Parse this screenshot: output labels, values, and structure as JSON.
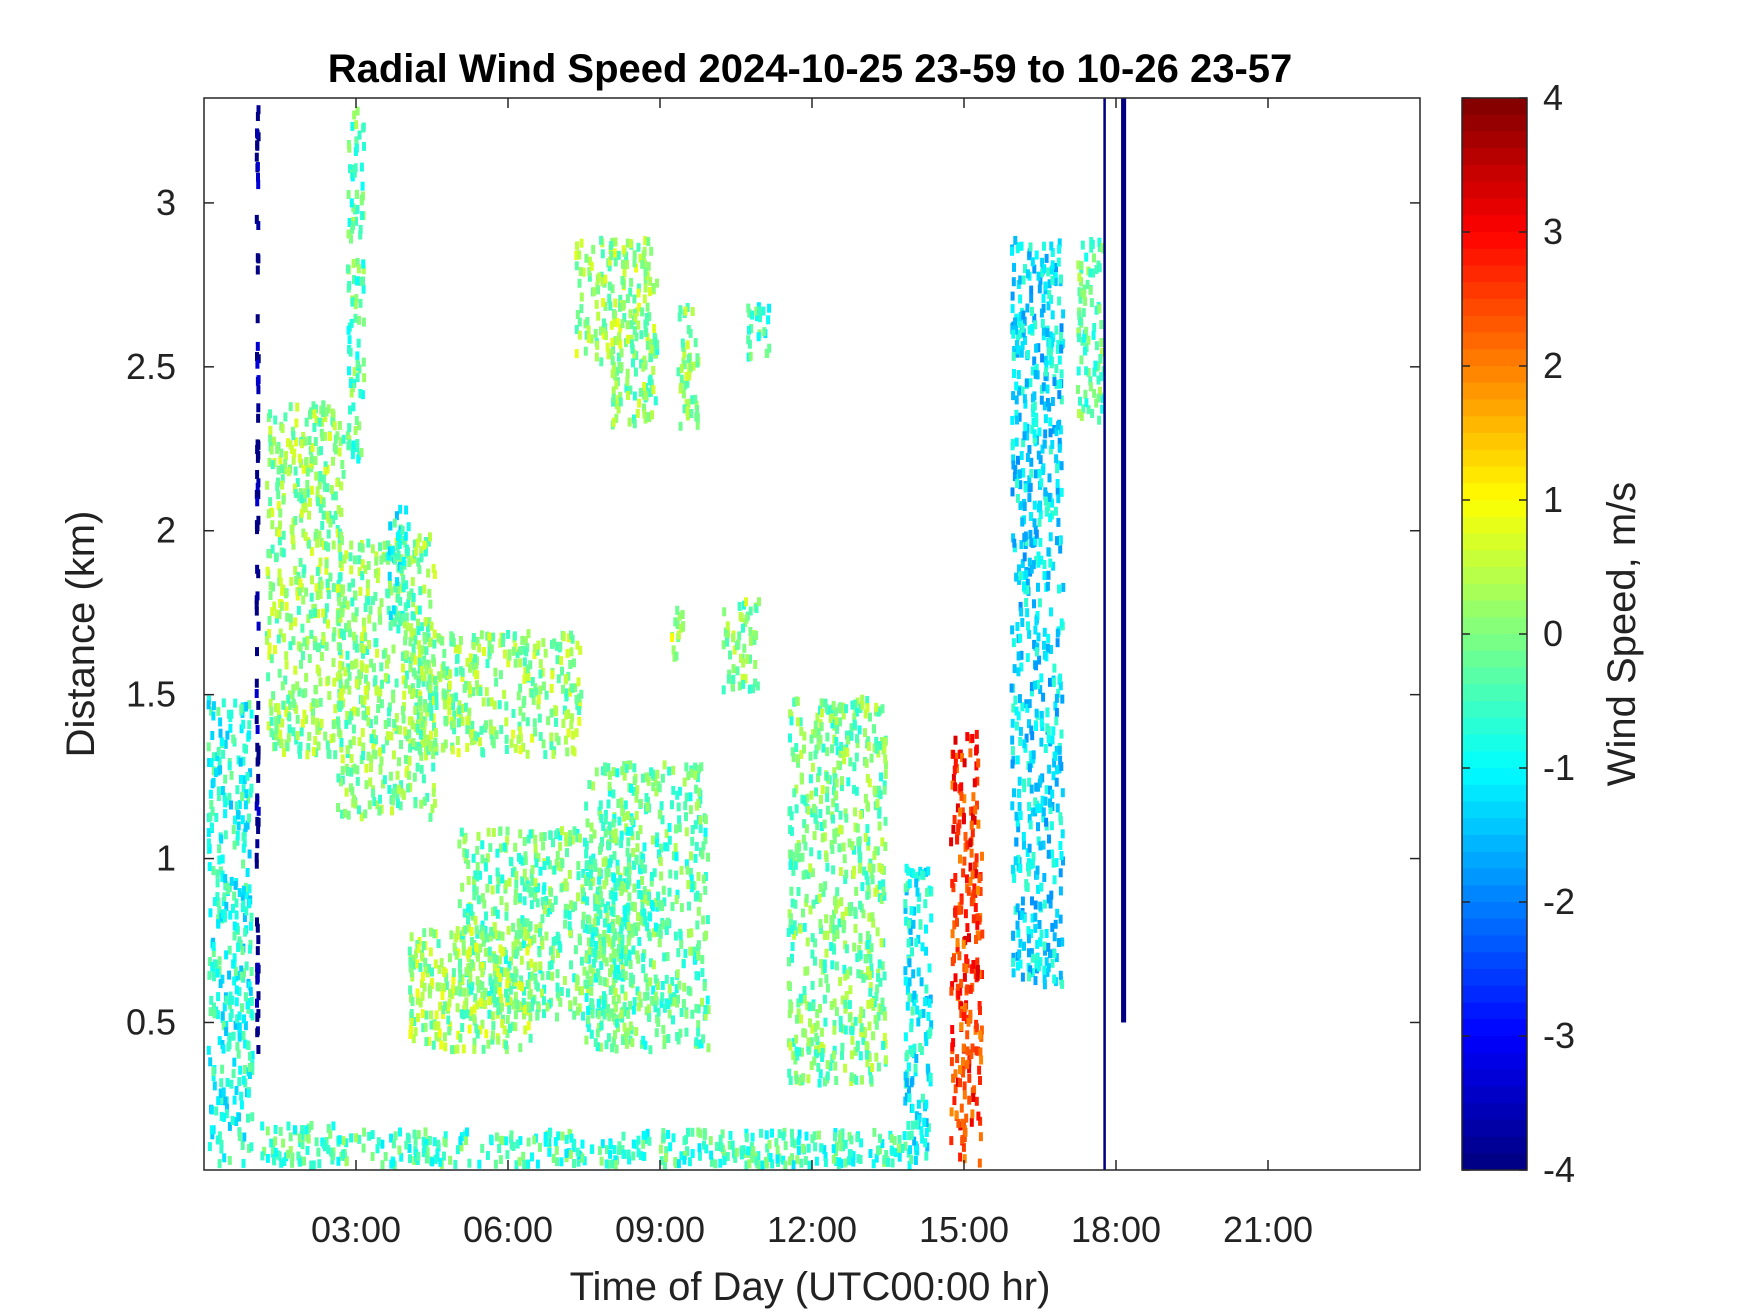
{
  "chart_data": {
    "type": "heatmap",
    "title": "Radial Wind Speed 2024-10-25 23-59 to 10-26 23-57",
    "xlabel": "Time of Day (UTC00:00 hr)",
    "ylabel": "Distance (km)",
    "xlim": [
      0,
      24
    ],
    "ylim": [
      0.05,
      3.32
    ],
    "x_ticks": [
      3,
      6,
      9,
      12,
      15,
      18,
      21
    ],
    "x_tick_labels": [
      "03:00",
      "06:00",
      "09:00",
      "12:00",
      "15:00",
      "18:00",
      "21:00"
    ],
    "y_ticks": [
      0.5,
      1,
      1.5,
      2,
      2.5,
      3
    ],
    "y_tick_labels": [
      "0.5",
      "1",
      "1.5",
      "2",
      "2.5",
      "3"
    ],
    "colorbar": {
      "label": "Wind Speed, m/s",
      "range": [
        -4,
        4
      ],
      "ticks": [
        4,
        3,
        2,
        1,
        0,
        -1,
        -2,
        -3,
        -4
      ],
      "tick_labels": [
        "4",
        "3",
        "2",
        "1",
        "0",
        "-1",
        "-2",
        "-3",
        "-4"
      ],
      "colormap": "jet"
    },
    "regions": [
      {
        "x": [
          0.05,
          1.0
        ],
        "y": [
          0.05,
          1.5
        ],
        "value": -0.8
      },
      {
        "x": [
          1.0,
          1.12
        ],
        "y": [
          0.35,
          3.32
        ],
        "value": -4.0
      },
      {
        "x": [
          1.1,
          3.2
        ],
        "y": [
          0.05,
          0.2
        ],
        "value": -0.4
      },
      {
        "x": [
          3.2,
          14.0
        ],
        "y": [
          0.05,
          0.18
        ],
        "value": -0.5
      },
      {
        "x": [
          1.2,
          2.8
        ],
        "y": [
          1.3,
          2.4
        ],
        "value": 0.1
      },
      {
        "x": [
          2.6,
          4.6
        ],
        "y": [
          1.1,
          2.0
        ],
        "value": 0.0
      },
      {
        "x": [
          2.8,
          3.2
        ],
        "y": [
          2.2,
          3.3
        ],
        "value": -0.3
      },
      {
        "x": [
          3.6,
          4.1
        ],
        "y": [
          1.7,
          2.1
        ],
        "value": -0.8
      },
      {
        "x": [
          4.0,
          7.5
        ],
        "y": [
          1.3,
          1.7
        ],
        "value": 0.1
      },
      {
        "x": [
          5.0,
          8.5
        ],
        "y": [
          0.5,
          1.1
        ],
        "value": -0.2
      },
      {
        "x": [
          4.0,
          6.5
        ],
        "y": [
          0.4,
          0.8
        ],
        "value": 0.2
      },
      {
        "x": [
          7.5,
          10.0
        ],
        "y": [
          0.4,
          1.3
        ],
        "value": -0.3
      },
      {
        "x": [
          7.3,
          9.0
        ],
        "y": [
          2.5,
          2.9
        ],
        "value": 0.2
      },
      {
        "x": [
          8.0,
          9.0
        ],
        "y": [
          2.3,
          2.6
        ],
        "value": 0.0
      },
      {
        "x": [
          9.3,
          9.8
        ],
        "y": [
          2.3,
          2.7
        ],
        "value": 0.1
      },
      {
        "x": [
          9.2,
          9.5
        ],
        "y": [
          1.6,
          1.8
        ],
        "value": 0.5
      },
      {
        "x": [
          10.2,
          11.0
        ],
        "y": [
          1.5,
          1.8
        ],
        "value": 0.0
      },
      {
        "x": [
          10.7,
          11.2
        ],
        "y": [
          2.5,
          2.7
        ],
        "value": -0.5
      },
      {
        "x": [
          11.5,
          13.5
        ],
        "y": [
          0.3,
          1.5
        ],
        "value": -0.1
      },
      {
        "x": [
          13.8,
          14.4
        ],
        "y": [
          0.05,
          1.0
        ],
        "value": -1.0
      },
      {
        "x": [
          14.7,
          15.4
        ],
        "y": [
          0.05,
          1.4
        ],
        "value": 2.6
      },
      {
        "x": [
          15.9,
          17.0
        ],
        "y": [
          0.6,
          2.9
        ],
        "value": -1.2
      },
      {
        "x": [
          17.2,
          17.8
        ],
        "y": [
          2.3,
          2.9
        ],
        "value": -0.2
      },
      {
        "x": [
          17.75,
          17.8
        ],
        "y": [
          0.05,
          3.32
        ],
        "value": -4.0
      },
      {
        "x": [
          18.1,
          18.2
        ],
        "y": [
          0.5,
          3.32
        ],
        "value": -4.0
      }
    ]
  }
}
